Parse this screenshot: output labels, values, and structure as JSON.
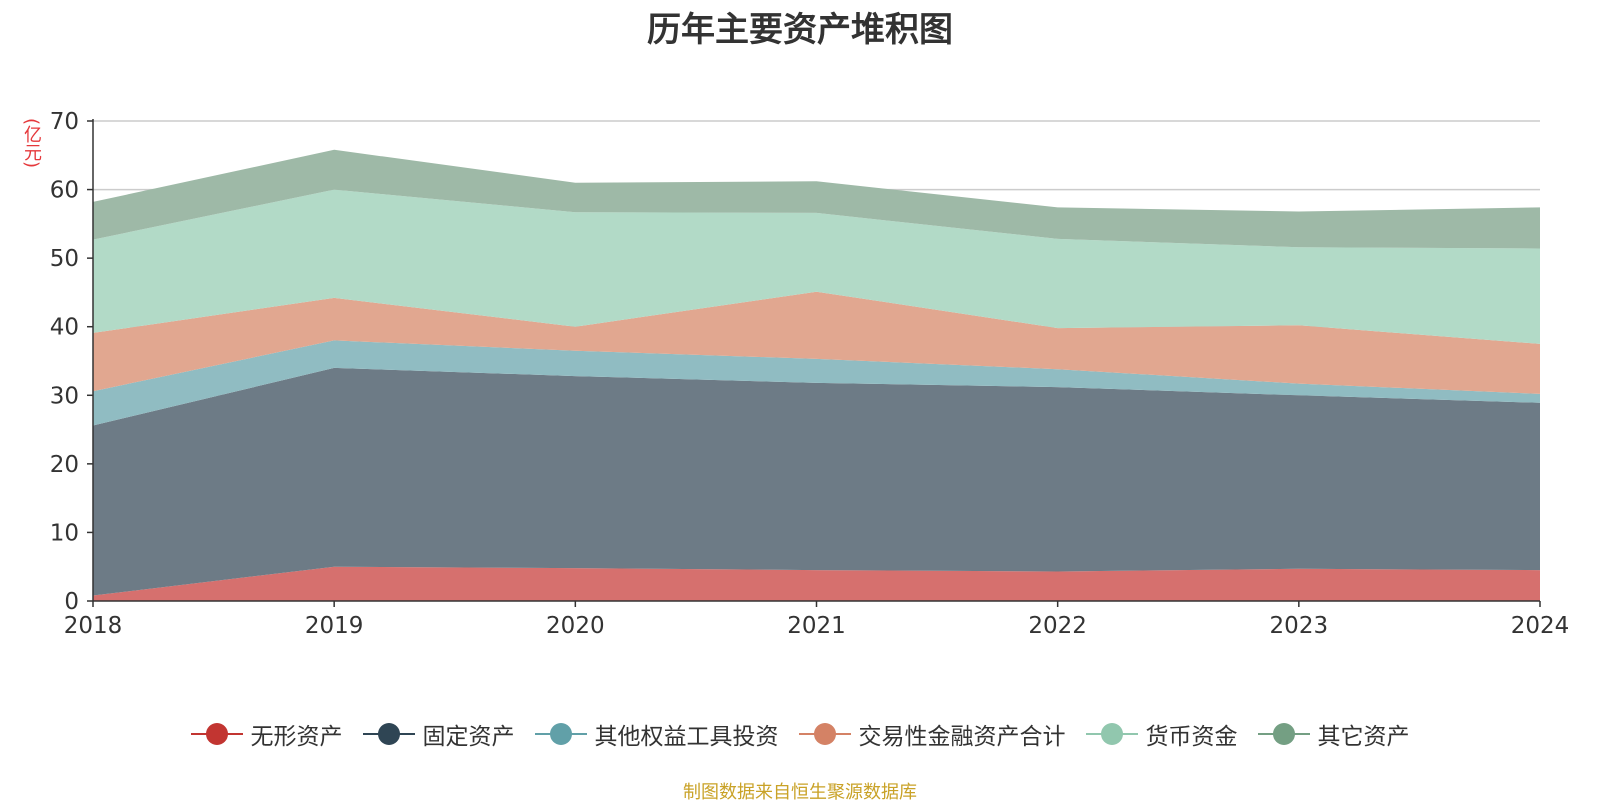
{
  "chart_data": {
    "type": "area",
    "stacked": true,
    "title": "历年主要资产堆积图",
    "ylabel": "(亿元)",
    "xlabel": "",
    "x": [
      "2018",
      "2019",
      "2020",
      "2021",
      "2022",
      "2023",
      "2024"
    ],
    "ylim": [
      0,
      70
    ],
    "yticks": [
      0,
      10,
      20,
      30,
      40,
      50,
      60,
      70
    ],
    "grid": true,
    "legend_position": "bottom",
    "series": [
      {
        "name": "无形资产",
        "color": "#c23531",
        "fill": "#d6706e",
        "values": [
          0.8,
          5.0,
          4.8,
          4.5,
          4.3,
          4.7,
          4.5
        ]
      },
      {
        "name": "固定资产",
        "color": "#2f4554",
        "fill": "#6d7b86",
        "values": [
          24.8,
          29.0,
          28.0,
          27.3,
          26.9,
          25.3,
          24.4
        ]
      },
      {
        "name": "其他权益工具投资",
        "color": "#61a0a8",
        "fill": "#90bcc2",
        "values": [
          5.0,
          4.0,
          3.7,
          3.5,
          2.6,
          1.7,
          1.3
        ]
      },
      {
        "name": "交易性金融资产合计",
        "color": "#d48265",
        "fill": "#e1a790",
        "values": [
          8.5,
          6.2,
          3.5,
          9.8,
          6.0,
          8.5,
          7.3
        ]
      },
      {
        "name": "货币资金",
        "color": "#91c7ae",
        "fill": "#b2dac7",
        "values": [
          13.6,
          15.8,
          16.7,
          11.5,
          13.0,
          11.4,
          13.9
        ]
      },
      {
        "name": "其它资产",
        "color": "#749f83",
        "fill": "#9eb9a7",
        "values": [
          5.5,
          5.8,
          4.3,
          4.6,
          4.6,
          5.2,
          6.0
        ]
      }
    ]
  },
  "source_note": "制图数据来自恒生聚源数据库"
}
